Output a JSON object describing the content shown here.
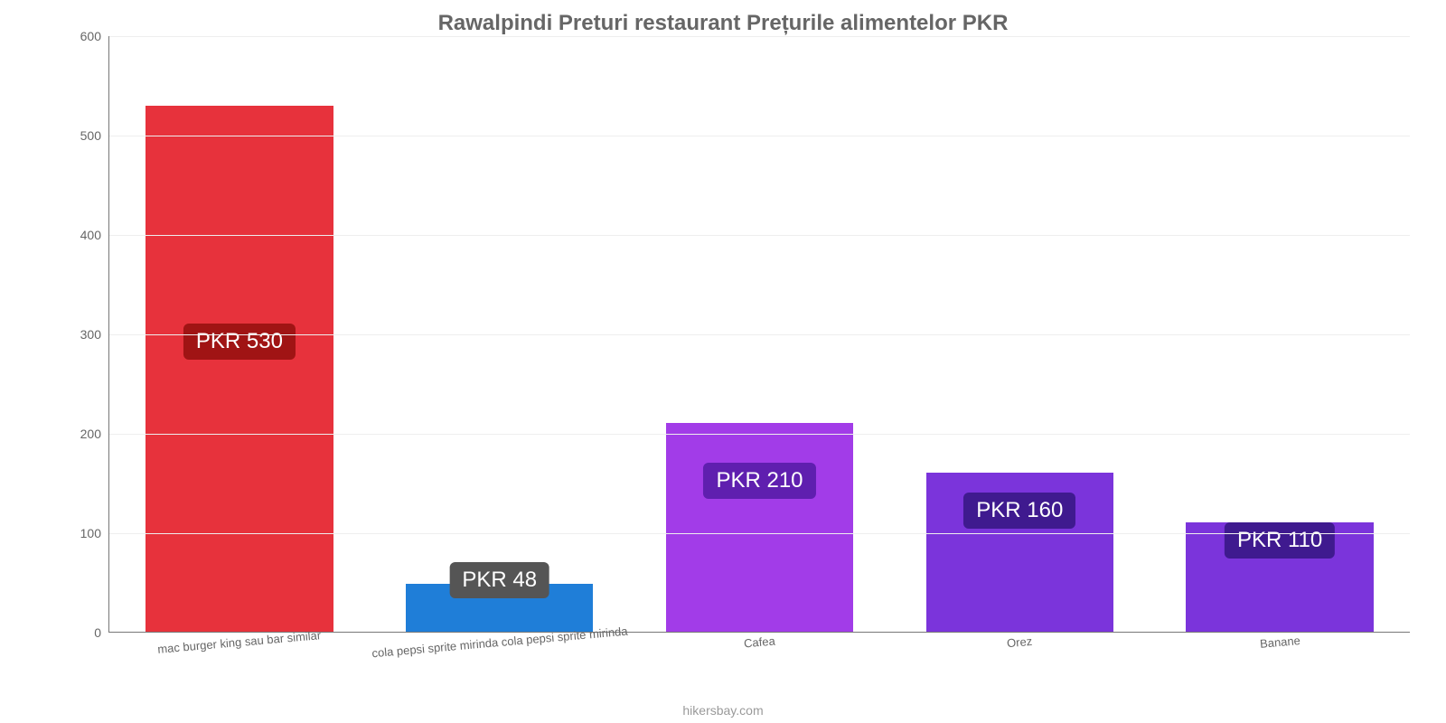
{
  "chart": {
    "type": "bar",
    "title": "Rawalpindi Preturi restaurant Prețurile alimentelor PKR",
    "title_color": "#666666",
    "title_fontsize": 24,
    "background_color": "#ffffff",
    "grid_color": "#eeeeee",
    "axis_color": "#777777",
    "tick_label_color": "#666666",
    "tick_fontsize": 14,
    "xlabel_fontsize": 13,
    "xlabel_rotation_deg": -5,
    "bar_width_pct": 72,
    "ylim": [
      0,
      600
    ],
    "yticks": [
      0,
      100,
      200,
      300,
      400,
      500,
      600
    ],
    "categories": [
      "mac burger king sau bar similar",
      "cola pepsi sprite mirinda cola pepsi sprite mirinda",
      "Cafea",
      "Orez",
      "Banane"
    ],
    "values": [
      530,
      48,
      210,
      160,
      110
    ],
    "value_labels": [
      "PKR 530",
      "PKR 48",
      "PKR 210",
      "PKR 160",
      "PKR 110"
    ],
    "bar_colors": [
      "#e7323c",
      "#1f7ed8",
      "#a23ce8",
      "#7b34db",
      "#7b34db"
    ],
    "badge_colors": [
      "#a01414",
      "#555555",
      "#5f1faf",
      "#3f1a8f",
      "#3f1a8f"
    ],
    "badge_text_color": "#ffffff",
    "badge_fontsize": 24,
    "badge_center_y_values": [
      290,
      50,
      150,
      120,
      90
    ],
    "attribution": "hikersbay.com",
    "attribution_color": "#9a9a9a",
    "attribution_fontsize": 14
  }
}
